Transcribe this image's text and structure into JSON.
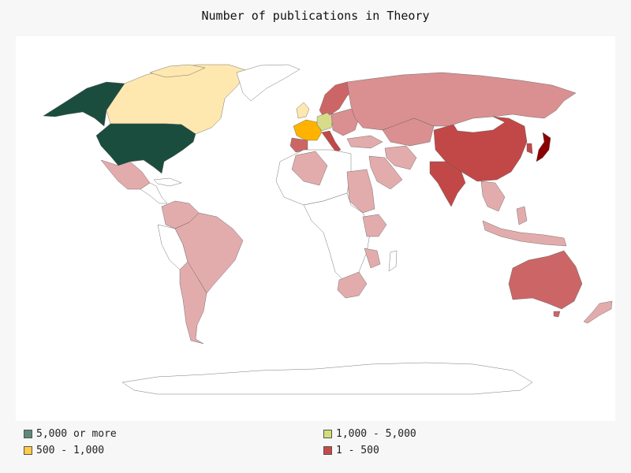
{
  "title": "Number of publications in Theory",
  "legend": [
    {
      "label": "5,000 or more",
      "color": "#5e8a78"
    },
    {
      "label": "1,000 - 5,000",
      "color": "#d4dc7a"
    },
    {
      "label": "500 - 1,000",
      "color": "#ffcc44"
    },
    {
      "label": "1 - 500",
      "color": "#c94848"
    }
  ],
  "colors": {
    "dark_green": "#1b4d3e",
    "light_yellow": "#ffe8b0",
    "yellow_green": "#d8dc8a",
    "orange": "#ffb300",
    "dark_red": "#8b0000",
    "red": "#c24848",
    "red_medium": "#cc6666",
    "red_light": "#da9090",
    "pink": "#e3acac",
    "no_data": "#ffffff"
  }
}
